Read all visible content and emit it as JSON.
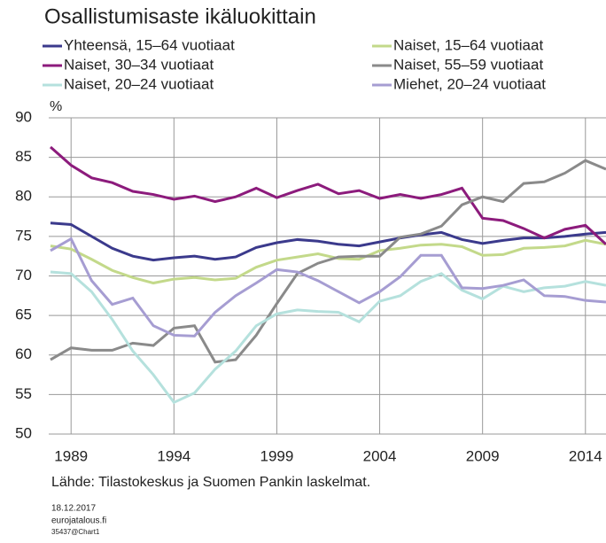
{
  "chart_data": {
    "type": "line",
    "title": "Osallistumisaste ikäluokittain",
    "y_unit": "%",
    "source": "Lähde: Tilastokeskus ja Suomen Pankin laskelmat.",
    "footer": [
      "18.12.2017",
      "eurojatalous.fi",
      "35437@Chart1"
    ],
    "x": [
      1988,
      1989,
      1990,
      1991,
      1992,
      1993,
      1994,
      1995,
      1996,
      1997,
      1998,
      1999,
      2000,
      2001,
      2002,
      2003,
      2004,
      2005,
      2006,
      2007,
      2008,
      2009,
      2010,
      2011,
      2012,
      2013,
      2014,
      2015
    ],
    "xlim": [
      1988,
      2015
    ],
    "xticks": [
      1989,
      1994,
      1999,
      2004,
      2009,
      2014
    ],
    "ylim": [
      50,
      90
    ],
    "yticks": [
      50,
      55,
      60,
      65,
      70,
      75,
      80,
      85,
      90
    ],
    "grid": true,
    "series": [
      {
        "name": "Yhteensä, 15–64 vuotiaat",
        "color": "#3b3a8c",
        "values": [
          76.7,
          76.5,
          75,
          73.5,
          72.5,
          72,
          72.3,
          72.5,
          72.1,
          72.4,
          73.6,
          74.2,
          74.6,
          74.4,
          74,
          73.8,
          74.3,
          74.8,
          75.2,
          75.5,
          74.6,
          74.1,
          74.5,
          74.8,
          74.8,
          75,
          75.3,
          75.5
        ]
      },
      {
        "name": "Naiset, 15–64 vuotiaat",
        "color": "#c3d98a",
        "values": [
          73.8,
          73.4,
          72.1,
          70.7,
          69.8,
          69.1,
          69.6,
          69.8,
          69.5,
          69.7,
          71.1,
          72,
          72.4,
          72.8,
          72.2,
          72.1,
          73.2,
          73.5,
          73.9,
          74,
          73.7,
          72.6,
          72.7,
          73.5,
          73.6,
          73.8,
          74.5,
          74
        ]
      },
      {
        "name": "Naiset, 30–34 vuotiaat",
        "color": "#8c1b7c",
        "values": [
          86.3,
          84,
          82.4,
          81.8,
          80.7,
          80.3,
          79.7,
          80.1,
          79.4,
          80,
          81.1,
          79.9,
          80.8,
          81.6,
          80.4,
          80.8,
          79.8,
          80.3,
          79.8,
          80.3,
          81.1,
          77.3,
          77,
          76,
          74.8,
          75.9,
          76.4,
          74
        ]
      },
      {
        "name": "Naiset, 55–59 vuotiaat",
        "color": "#8a8a8a",
        "values": [
          59.4,
          60.9,
          60.6,
          60.6,
          61.5,
          61.2,
          63.4,
          63.7,
          59.1,
          59.4,
          62.5,
          66.5,
          70.3,
          71.6,
          72.4,
          72.5,
          72.5,
          74.9,
          75.3,
          76.3,
          79,
          80,
          79.4,
          81.7,
          81.9,
          83,
          84.6,
          83.5
        ]
      },
      {
        "name": "Naiset, 20–24 vuotiaat",
        "color": "#b5e1dd",
        "values": [
          70.5,
          70.3,
          68,
          64.5,
          60.5,
          57.5,
          54,
          55.2,
          58.2,
          60.5,
          63.7,
          65.2,
          65.7,
          65.5,
          65.4,
          64.2,
          66.8,
          67.5,
          69.3,
          70.3,
          68.2,
          67.1,
          68.7,
          68,
          68.5,
          68.7,
          69.3,
          68.8
        ]
      },
      {
        "name": "Miehet, 20–24 vuotiaat",
        "color": "#a69dd2",
        "values": [
          73.2,
          74.7,
          69.4,
          66.4,
          67.2,
          63.7,
          62.5,
          62.4,
          65.4,
          67.5,
          69.1,
          70.8,
          70.5,
          69.4,
          68,
          66.6,
          68,
          69.9,
          72.6,
          72.6,
          68.5,
          68.4,
          68.8,
          69.5,
          67.5,
          67.4,
          66.9,
          66.7
        ]
      }
    ]
  }
}
